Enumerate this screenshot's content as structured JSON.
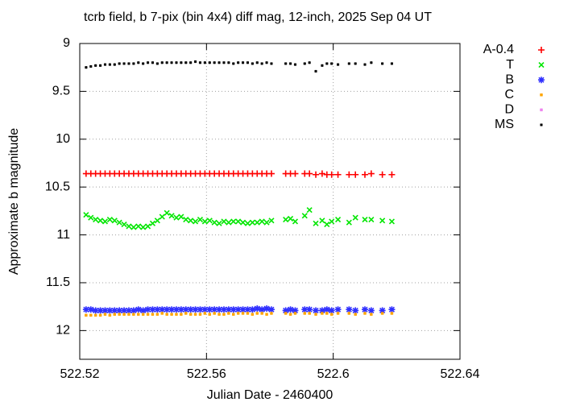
{
  "chart_data": {
    "type": "scatter",
    "title": "tcrb field, b 7-pix (bin 4x4) diff mag, 12-inch, 2025 Sep 04 UT",
    "x_label": "Julian Date - 2460400",
    "y_label": "Approximate b magnitude",
    "xlim": [
      522.52,
      522.64
    ],
    "ylim": [
      12.3,
      9
    ],
    "xticks": [
      522.52,
      522.56,
      522.6,
      522.64
    ],
    "yticks": [
      9,
      9.5,
      10,
      10.5,
      11,
      11.5,
      12
    ],
    "grid": true,
    "legend": "right",
    "x": [
      522.522,
      522.5235,
      522.525,
      522.5265,
      522.528,
      522.5295,
      522.531,
      522.5325,
      522.534,
      522.5355,
      522.537,
      522.5385,
      522.54,
      522.5415,
      522.543,
      522.5445,
      522.546,
      522.5475,
      522.549,
      522.5505,
      522.552,
      522.5535,
      522.555,
      522.5565,
      522.558,
      522.5595,
      522.561,
      522.5625,
      522.564,
      522.5655,
      522.567,
      522.5685,
      522.57,
      522.5715,
      522.573,
      522.5745,
      522.576,
      522.5775,
      522.579,
      522.5805,
      522.585,
      522.5865,
      522.588,
      522.591,
      522.5925,
      522.5945,
      522.5965,
      522.598,
      522.5995,
      522.6015,
      522.605,
      522.607,
      522.61,
      522.612,
      522.6155,
      522.6185
    ],
    "series": [
      {
        "name": "A-0.4",
        "color": "#ff0000",
        "marker": "plus",
        "values": [
          10.36,
          10.36,
          10.36,
          10.36,
          10.36,
          10.36,
          10.36,
          10.36,
          10.36,
          10.36,
          10.36,
          10.36,
          10.36,
          10.36,
          10.36,
          10.36,
          10.36,
          10.36,
          10.36,
          10.36,
          10.36,
          10.36,
          10.36,
          10.36,
          10.36,
          10.36,
          10.36,
          10.36,
          10.36,
          10.36,
          10.36,
          10.36,
          10.36,
          10.36,
          10.36,
          10.36,
          10.36,
          10.36,
          10.36,
          10.36,
          10.36,
          10.36,
          10.36,
          10.36,
          10.36,
          10.37,
          10.36,
          10.37,
          10.37,
          10.37,
          10.37,
          10.37,
          10.37,
          10.36,
          10.37,
          10.37
        ]
      },
      {
        "name": "T",
        "color": "#00e600",
        "marker": "cross",
        "values": [
          10.79,
          10.82,
          10.84,
          10.85,
          10.86,
          10.84,
          10.85,
          10.87,
          10.89,
          10.91,
          10.92,
          10.91,
          10.92,
          10.91,
          10.88,
          10.85,
          10.81,
          10.77,
          10.8,
          10.82,
          10.81,
          10.84,
          10.85,
          10.86,
          10.84,
          10.86,
          10.85,
          10.87,
          10.88,
          10.86,
          10.87,
          10.86,
          10.86,
          10.87,
          10.88,
          10.87,
          10.87,
          10.86,
          10.87,
          10.85,
          10.84,
          10.83,
          10.86,
          10.8,
          10.74,
          10.88,
          10.85,
          10.89,
          10.86,
          10.84,
          10.87,
          10.82,
          10.84,
          10.84,
          10.85,
          10.86
        ]
      },
      {
        "name": "B",
        "color": "#3030ff",
        "marker": "star",
        "values": [
          11.78,
          11.78,
          11.79,
          11.79,
          11.79,
          11.79,
          11.79,
          11.79,
          11.79,
          11.79,
          11.79,
          11.78,
          11.79,
          11.78,
          11.78,
          11.78,
          11.78,
          11.78,
          11.78,
          11.78,
          11.78,
          11.78,
          11.78,
          11.78,
          11.78,
          11.78,
          11.78,
          11.78,
          11.78,
          11.78,
          11.78,
          11.78,
          11.78,
          11.78,
          11.78,
          11.78,
          11.77,
          11.78,
          11.77,
          11.78,
          11.79,
          11.78,
          11.79,
          11.78,
          11.78,
          11.79,
          11.79,
          11.78,
          11.79,
          11.78,
          11.78,
          11.79,
          11.78,
          11.79,
          11.79,
          11.78
        ]
      },
      {
        "name": "C",
        "color": "#ffa500",
        "marker": "square",
        "values": [
          11.84,
          11.84,
          11.84,
          11.84,
          11.83,
          11.84,
          11.83,
          11.83,
          11.83,
          11.83,
          11.83,
          11.83,
          11.83,
          11.83,
          11.83,
          11.83,
          11.82,
          11.83,
          11.83,
          11.83,
          11.83,
          11.82,
          11.83,
          11.83,
          11.83,
          11.82,
          11.83,
          11.82,
          11.83,
          11.83,
          11.82,
          11.83,
          11.82,
          11.82,
          11.82,
          11.83,
          11.82,
          11.82,
          11.83,
          11.82,
          11.82,
          11.83,
          11.82,
          11.82,
          11.82,
          11.83,
          11.82,
          11.82,
          11.83,
          11.82,
          11.82,
          11.83,
          11.82,
          11.83,
          11.82,
          11.82
        ]
      },
      {
        "name": "D",
        "color": "#ee82ee",
        "marker": "square",
        "values": [
          null,
          null,
          null,
          null,
          null,
          null,
          null,
          null,
          null,
          null,
          null,
          null,
          null,
          null,
          null,
          null,
          null,
          null,
          null,
          null,
          null,
          null,
          null,
          null,
          null,
          null,
          null,
          null,
          null,
          null,
          null,
          null,
          null,
          null,
          null,
          null,
          null,
          null,
          null,
          null,
          null,
          null,
          null,
          null,
          null,
          null,
          null,
          null,
          null,
          null,
          null,
          null,
          null,
          null,
          null,
          null
        ]
      },
      {
        "name": "MS",
        "color": "#000000",
        "marker": "dot",
        "values": [
          9.25,
          9.24,
          9.23,
          9.23,
          9.22,
          9.22,
          9.22,
          9.21,
          9.21,
          9.21,
          9.21,
          9.2,
          9.21,
          9.2,
          9.2,
          9.21,
          9.2,
          9.2,
          9.2,
          9.2,
          9.2,
          9.2,
          9.2,
          9.19,
          9.2,
          9.2,
          9.2,
          9.2,
          9.2,
          9.2,
          9.2,
          9.21,
          9.2,
          9.2,
          9.2,
          9.21,
          9.2,
          9.21,
          9.2,
          9.21,
          9.21,
          9.21,
          9.22,
          9.21,
          9.2,
          9.29,
          9.23,
          9.21,
          9.21,
          9.22,
          9.21,
          9.21,
          9.22,
          9.2,
          9.21,
          9.21
        ]
      }
    ]
  }
}
